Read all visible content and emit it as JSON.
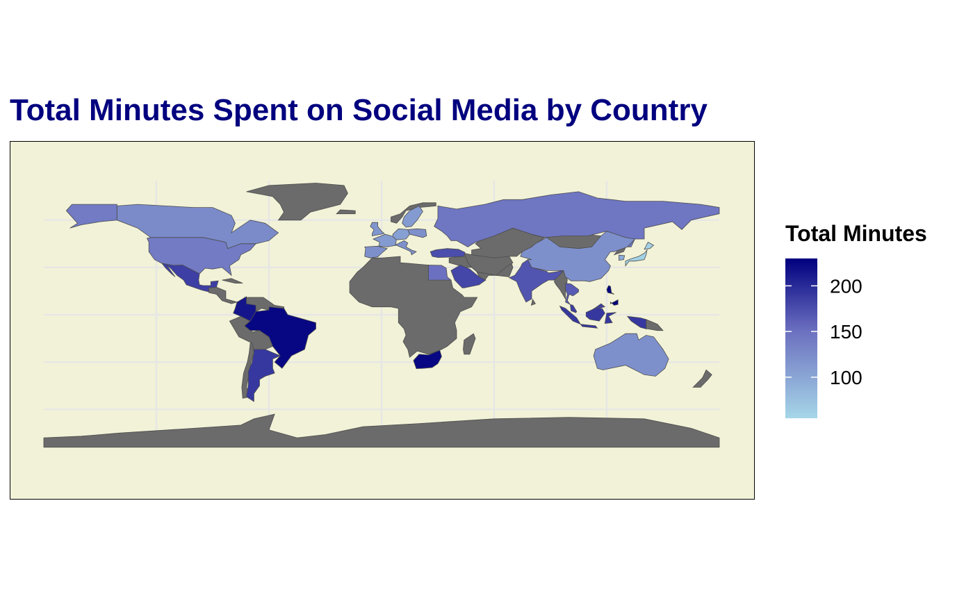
{
  "title": "Total Minutes Spent on Social Media by Country",
  "legend": {
    "title": "Total Minutes",
    "scale": {
      "min": 55,
      "max": 230,
      "low_color": "#a6d6e8",
      "mid_color": "#6b6fbf",
      "high_color": "#00007f"
    },
    "ticks": [
      {
        "value": 200,
        "label": "200"
      },
      {
        "value": 150,
        "label": "150"
      },
      {
        "value": 100,
        "label": "100"
      }
    ]
  },
  "colors": {
    "panel_background": "#f2f2d8",
    "gridline": "#e6e6e6",
    "no_data": "#6b6b6b",
    "border": "#4d4d4d"
  },
  "chart_data": {
    "type": "choropleth",
    "title": "Total Minutes Spent on Social Media by Country",
    "legend_title": "Total Minutes",
    "legend_placement": "right",
    "grid": true,
    "regions": [
      {
        "name": "Brazil",
        "value": 225
      },
      {
        "name": "Colombia",
        "value": 215
      },
      {
        "name": "South Africa",
        "value": 225
      },
      {
        "name": "Philippines",
        "value": 230
      },
      {
        "name": "Argentina",
        "value": 190
      },
      {
        "name": "Mexico",
        "value": 185
      },
      {
        "name": "Indonesia",
        "value": 190
      },
      {
        "name": "Malaysia",
        "value": 185
      },
      {
        "name": "Saudi Arabia",
        "value": 180
      },
      {
        "name": "Turkey",
        "value": 175
      },
      {
        "name": "India",
        "value": 170
      },
      {
        "name": "Thailand",
        "value": 165
      },
      {
        "name": "Egypt",
        "value": 150
      },
      {
        "name": "Russia",
        "value": 145
      },
      {
        "name": "United States",
        "value": 140
      },
      {
        "name": "Canada",
        "value": 125
      },
      {
        "name": "China",
        "value": 120
      },
      {
        "name": "Australia",
        "value": 120
      },
      {
        "name": "United Kingdom",
        "value": 115
      },
      {
        "name": "Spain",
        "value": 120
      },
      {
        "name": "France",
        "value": 110
      },
      {
        "name": "Italy",
        "value": 120
      },
      {
        "name": "Germany",
        "value": 105
      },
      {
        "name": "Poland",
        "value": 120
      },
      {
        "name": "Sweden",
        "value": 110
      },
      {
        "name": "South Korea",
        "value": 95
      },
      {
        "name": "Japan",
        "value": 60
      }
    ]
  }
}
